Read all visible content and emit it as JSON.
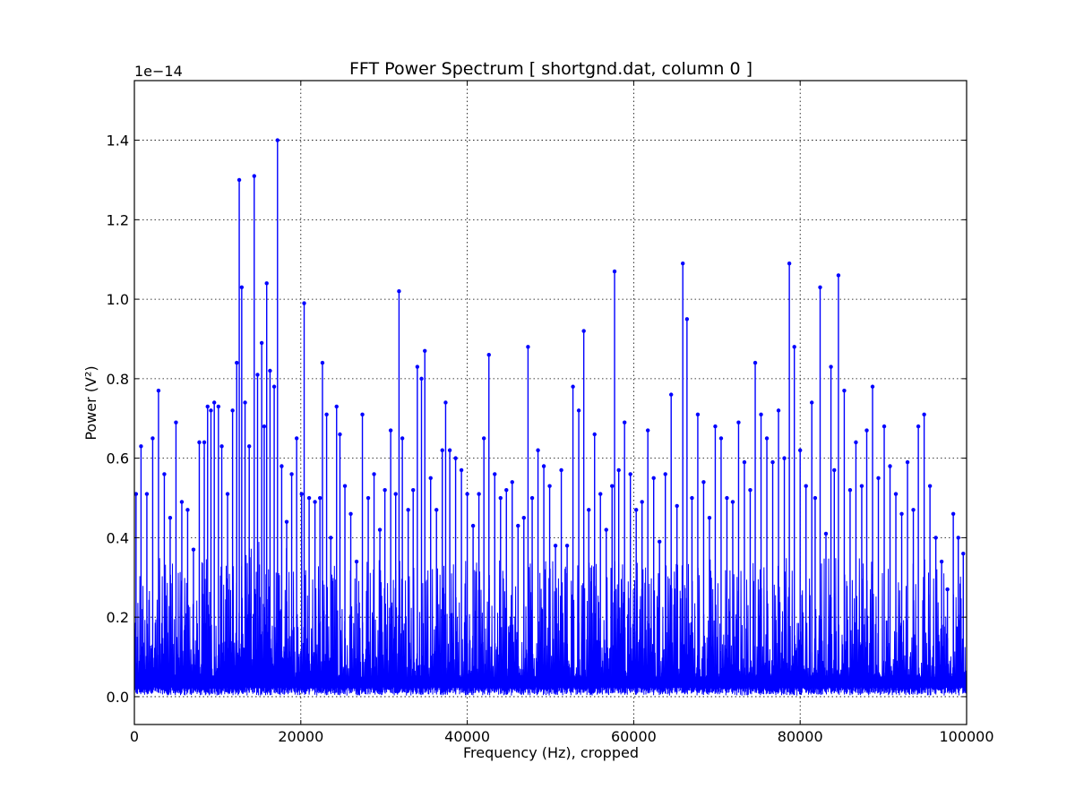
{
  "chart_data": {
    "type": "line",
    "title": "FFT Power Spectrum  [ shortgnd.dat, column 0 ]",
    "xlabel": "Frequency (Hz),  cropped",
    "ylabel": "Power (V²)",
    "y_offset_label": "1e−14",
    "xlim": [
      0,
      100000
    ],
    "ylim": [
      -0.07,
      1.55
    ],
    "y_scale_note": "values in units of 1e-14",
    "xticks": [
      0,
      20000,
      40000,
      60000,
      80000,
      100000
    ],
    "xtick_labels": [
      "0",
      "20000",
      "40000",
      "60000",
      "80000",
      "100000"
    ],
    "yticks": [
      0.0,
      0.2,
      0.4,
      0.6,
      0.8,
      1.0,
      1.2,
      1.4
    ],
    "ytick_labels": [
      "0.0",
      "0.2",
      "0.4",
      "0.6",
      "0.8",
      "1.0",
      "1.2",
      "1.4"
    ],
    "grid": true,
    "series_color": "#0000ff",
    "series": [
      {
        "marker": "dot",
        "x": [
          200,
          800,
          1500,
          2200,
          2900,
          3600,
          4300,
          5000,
          5700,
          6400,
          7100,
          7800,
          8400,
          8800,
          9200,
          9600,
          10100,
          10500,
          11200,
          11800,
          12300,
          12600,
          12900,
          13300,
          13800,
          14400,
          14800,
          15300,
          15600,
          15900,
          16300,
          16800,
          17200,
          17700,
          18300,
          18900,
          19500,
          20100,
          20400,
          21000,
          21700,
          22300,
          22600,
          23100,
          23600,
          24300,
          24700,
          25300,
          26000,
          26700,
          27400,
          28100,
          28800,
          29500,
          30100,
          30800,
          31400,
          31800,
          32200,
          32900,
          33500,
          34000,
          34500,
          34900,
          35600,
          36300,
          37000,
          37400,
          37900,
          38600,
          39300,
          40000,
          40700,
          41400,
          42000,
          42600,
          43300,
          44000,
          44700,
          45400,
          46100,
          46800,
          47300,
          47800,
          48500,
          49200,
          49900,
          50600,
          51300,
          52000,
          52700,
          53400,
          54000,
          54600,
          55300,
          56000,
          56700,
          57400,
          57700,
          58200,
          58900,
          59600,
          60300,
          61000,
          61700,
          62400,
          63100,
          63800,
          64500,
          65200,
          65900,
          66400,
          67000,
          67700,
          68400,
          69100,
          69800,
          70500,
          71200,
          71900,
          72600,
          73300,
          74000,
          74600,
          75300,
          76000,
          76700,
          77400,
          78100,
          78700,
          79300,
          80000,
          80700,
          81400,
          81800,
          82400,
          83100,
          83700,
          84100,
          84600,
          85300,
          86000,
          86700,
          87400,
          88000,
          88700,
          89400,
          90100,
          90800,
          91500,
          92200,
          92900,
          93600,
          94200,
          94900,
          95600,
          96300,
          97000,
          97700,
          98400,
          99000,
          99600
        ],
        "y": [
          0.51,
          0.63,
          0.51,
          0.65,
          0.77,
          0.56,
          0.45,
          0.69,
          0.49,
          0.47,
          0.37,
          0.64,
          0.64,
          0.73,
          0.72,
          0.74,
          0.73,
          0.63,
          0.51,
          0.72,
          0.84,
          1.3,
          1.03,
          0.74,
          0.63,
          1.31,
          0.81,
          0.89,
          0.68,
          1.04,
          0.82,
          0.78,
          1.4,
          0.58,
          0.44,
          0.56,
          0.65,
          0.51,
          0.99,
          0.5,
          0.49,
          0.5,
          0.84,
          0.71,
          0.4,
          0.73,
          0.66,
          0.53,
          0.46,
          0.34,
          0.71,
          0.5,
          0.56,
          0.42,
          0.52,
          0.67,
          0.51,
          1.02,
          0.65,
          0.47,
          0.52,
          0.83,
          0.8,
          0.87,
          0.55,
          0.47,
          0.62,
          0.74,
          0.62,
          0.6,
          0.57,
          0.51,
          0.43,
          0.51,
          0.65,
          0.86,
          0.56,
          0.5,
          0.52,
          0.54,
          0.43,
          0.45,
          0.88,
          0.5,
          0.62,
          0.58,
          0.53,
          0.38,
          0.57,
          0.38,
          0.78,
          0.72,
          0.92,
          0.47,
          0.66,
          0.51,
          0.42,
          0.53,
          1.07,
          0.57,
          0.69,
          0.56,
          0.47,
          0.49,
          0.67,
          0.55,
          0.39,
          0.56,
          0.76,
          0.48,
          1.09,
          0.95,
          0.5,
          0.71,
          0.54,
          0.45,
          0.68,
          0.65,
          0.5,
          0.49,
          0.69,
          0.59,
          0.52,
          0.84,
          0.71,
          0.65,
          0.59,
          0.72,
          0.6,
          1.09,
          0.88,
          0.62,
          0.53,
          0.74,
          0.5,
          1.03,
          0.41,
          0.83,
          0.57,
          1.06,
          0.77,
          0.52,
          0.64,
          0.53,
          0.67,
          0.78,
          0.55,
          0.68,
          0.58,
          0.51,
          0.46,
          0.59,
          0.47,
          0.68,
          0.71,
          0.53,
          0.4,
          0.34,
          0.27,
          0.46,
          0.4,
          0.36
        ]
      }
    ]
  }
}
